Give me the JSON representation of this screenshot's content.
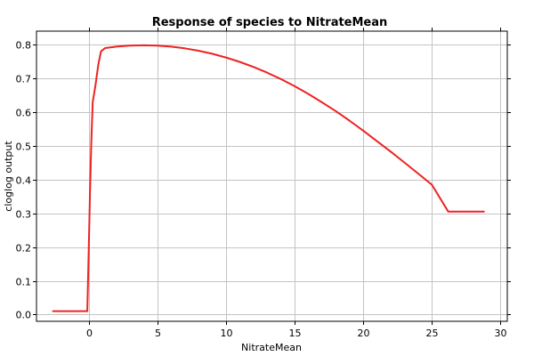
{
  "chart_data": {
    "type": "line",
    "title": "Response of species to NitrateMean",
    "xlabel": "NitrateMean",
    "ylabel": "cloglog output",
    "xlim": [
      -3.8,
      30.5
    ],
    "ylim": [
      -0.02,
      0.84
    ],
    "x_ticks": [
      0,
      5,
      10,
      15,
      20,
      25,
      30
    ],
    "y_ticks": [
      0.0,
      0.1,
      0.2,
      0.3,
      0.4,
      0.5,
      0.6,
      0.7,
      0.8
    ],
    "x_tick_labels": [
      "0",
      "5",
      "10",
      "15",
      "20",
      "25",
      "30"
    ],
    "y_tick_labels": [
      "0.0",
      "0.1",
      "0.2",
      "0.3",
      "0.4",
      "0.5",
      "0.6",
      "0.7",
      "0.8"
    ],
    "grid": true,
    "legend": "none",
    "series": [
      {
        "color": "#ee2222",
        "x": [
          -2.6,
          -0.1,
          0.0,
          0.1,
          0.2,
          0.3,
          0.5,
          0.7,
          0.9,
          1.2,
          2.0,
          3.0,
          4.0,
          5.0,
          6.0,
          7.0,
          8.0,
          9.0,
          10.0,
          11.0,
          12.0,
          13.0,
          14.0,
          15.0,
          16.0,
          17.0,
          18.0,
          19.0,
          20.0,
          21.0,
          22.0,
          23.0,
          24.0,
          25.0,
          26.2,
          28.8
        ],
        "y": [
          0.01,
          0.01,
          0.18,
          0.36,
          0.52,
          0.63,
          0.68,
          0.74,
          0.78,
          0.79,
          0.794,
          0.797,
          0.798,
          0.797,
          0.794,
          0.789,
          0.782,
          0.773,
          0.762,
          0.749,
          0.734,
          0.717,
          0.698,
          0.677,
          0.654,
          0.629,
          0.603,
          0.575,
          0.545,
          0.514,
          0.483,
          0.451,
          0.418,
          0.385,
          0.305,
          0.305
        ]
      }
    ]
  }
}
